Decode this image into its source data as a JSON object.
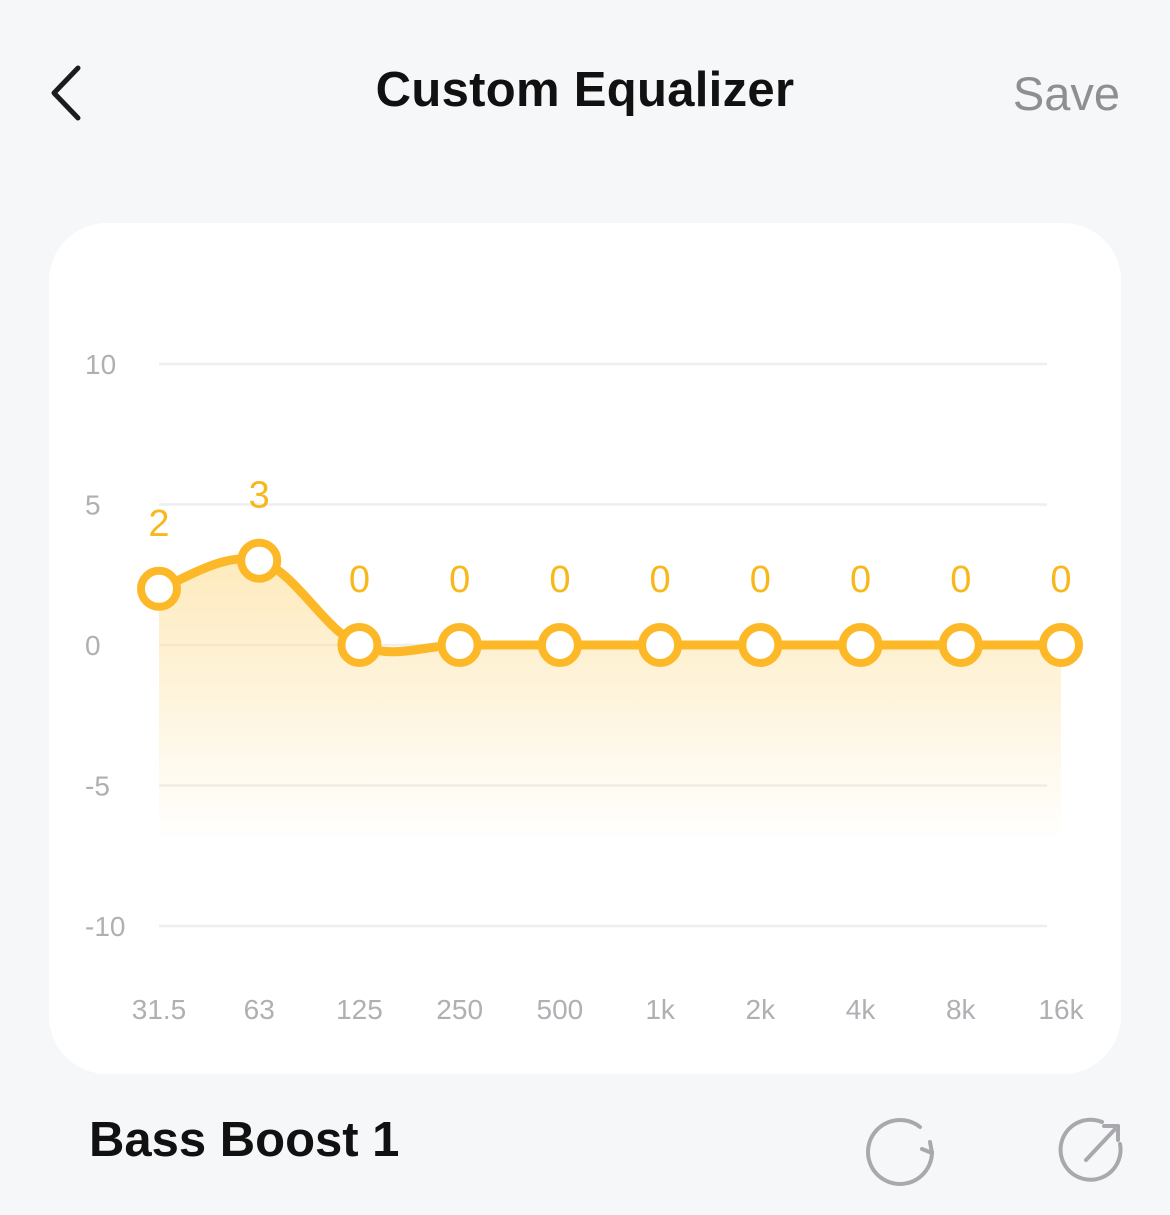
{
  "header": {
    "title": "Custom Equalizer",
    "save_label": "Save",
    "back_icon": "chevron-left-icon"
  },
  "chart_data": {
    "type": "line",
    "categories": [
      "31.5",
      "63",
      "125",
      "250",
      "500",
      "1k",
      "2k",
      "4k",
      "8k",
      "16k"
    ],
    "values": [
      2,
      3,
      0,
      0,
      0,
      0,
      0,
      0,
      0,
      0
    ],
    "value_labels": [
      "2",
      "3",
      "0",
      "0",
      "0",
      "0",
      "0",
      "0",
      "0",
      "0"
    ],
    "y_ticks": [
      "10",
      "5",
      "0",
      "-5",
      "-10"
    ],
    "ylim": [
      -10,
      10
    ],
    "grid": true,
    "line_color": "#fdb827",
    "fill_color": "#fde7b3",
    "label_color": "#f8b81c"
  },
  "preset": {
    "name": "Bass Boost 1",
    "reset_icon": "refresh-icon",
    "share_icon": "share-icon"
  },
  "colors": {
    "background": "#f6f7f9",
    "card": "#ffffff",
    "accent": "#fdb827",
    "muted": "#8e8e93"
  }
}
